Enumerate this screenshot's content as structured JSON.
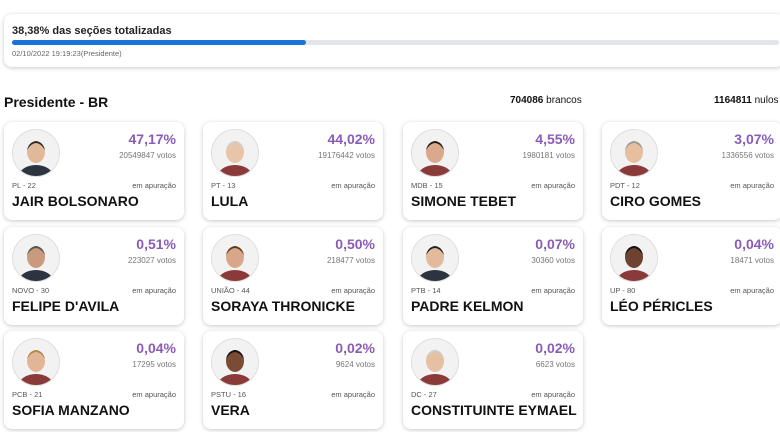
{
  "header": {
    "progress_label": "38,38% das seções totalizadas",
    "progress": 38.38,
    "timestamp": "02/10/2022 19:19:23(Presidente)"
  },
  "section": {
    "title": "Presidente - BR",
    "brancos": {
      "count": "704086",
      "label": "brancos"
    },
    "nulos": {
      "count": "1164811",
      "label": "nulos"
    }
  },
  "candidates": [
    {
      "name": "JAIR BOLSONARO",
      "party": "PL - 22",
      "percent": "47,17%",
      "votes": "20549847 votos",
      "status": "em apuração"
    },
    {
      "name": "LULA",
      "party": "PT - 13",
      "percent": "44,02%",
      "votes": "19176442 votos",
      "status": "em apuração"
    },
    {
      "name": "SIMONE TEBET",
      "party": "MDB - 15",
      "percent": "4,55%",
      "votes": "1980181 votos",
      "status": "em apuração"
    },
    {
      "name": "CIRO GOMES",
      "party": "PDT - 12",
      "percent": "3,07%",
      "votes": "1336556 votos",
      "status": "em apuração"
    },
    {
      "name": "FELIPE D'AVILA",
      "party": "NOVO - 30",
      "percent": "0,51%",
      "votes": "223027 votos",
      "status": "em apuração"
    },
    {
      "name": "SORAYA THRONICKE",
      "party": "UNIÃO - 44",
      "percent": "0,50%",
      "votes": "218477 votos",
      "status": "em apuração"
    },
    {
      "name": "PADRE KELMON",
      "party": "PTB - 14",
      "percent": "0,07%",
      "votes": "30360 votos",
      "status": "em apuração"
    },
    {
      "name": "LÉO PÉRICLES",
      "party": "UP - 80",
      "percent": "0,04%",
      "votes": "18471 votos",
      "status": "em apuração"
    },
    {
      "name": "SOFIA MANZANO",
      "party": "PCB - 21",
      "percent": "0,04%",
      "votes": "17295 votos",
      "status": "em apuração"
    },
    {
      "name": "VERA",
      "party": "PSTU - 16",
      "percent": "0,02%",
      "votes": "9624 votos",
      "status": "em apuração"
    },
    {
      "name": "CONSTITUINTE EYMAEL",
      "party": "DC - 27",
      "percent": "0,02%",
      "votes": "6623 votos",
      "status": "em apuração"
    }
  ]
}
